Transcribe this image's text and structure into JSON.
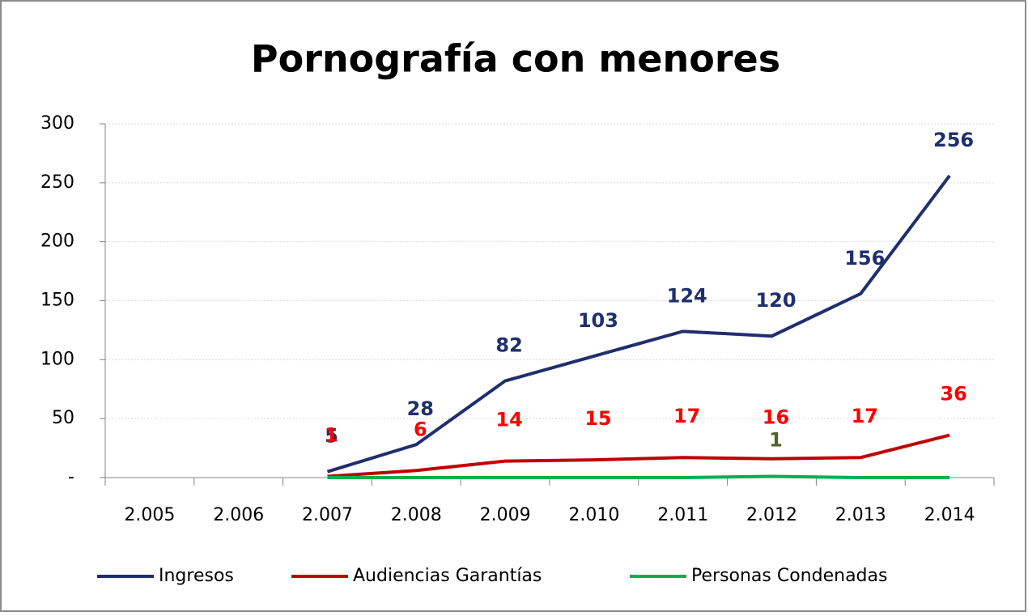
{
  "chart_data": {
    "type": "line",
    "title": "Pornografía con menores",
    "categories": [
      "2.005",
      "2.006",
      "2.007",
      "2.008",
      "2.009",
      "2.010",
      "2.011",
      "2.012",
      "2.013",
      "2.014"
    ],
    "series": [
      {
        "name": "Ingresos",
        "color": "#1f2f6e",
        "values": [
          null,
          null,
          5,
          28,
          82,
          103,
          124,
          120,
          156,
          256
        ]
      },
      {
        "name": "Audiencias Garantías",
        "color": "#c00000",
        "values": [
          null,
          null,
          1,
          6,
          14,
          15,
          17,
          16,
          17,
          36
        ]
      },
      {
        "name": "Personas Condenadas",
        "color": "#00b050",
        "values": [
          null,
          null,
          0,
          0,
          0,
          0,
          0,
          1,
          0,
          0
        ],
        "value_labels": [
          null,
          null,
          null,
          null,
          null,
          null,
          null,
          "1",
          null,
          null
        ]
      }
    ],
    "ylim": [
      0,
      300
    ],
    "yticks": [
      {
        "value": 0,
        "label": "-"
      },
      50,
      100,
      150,
      200,
      250,
      300
    ],
    "grid": true,
    "legend": "bottom"
  }
}
